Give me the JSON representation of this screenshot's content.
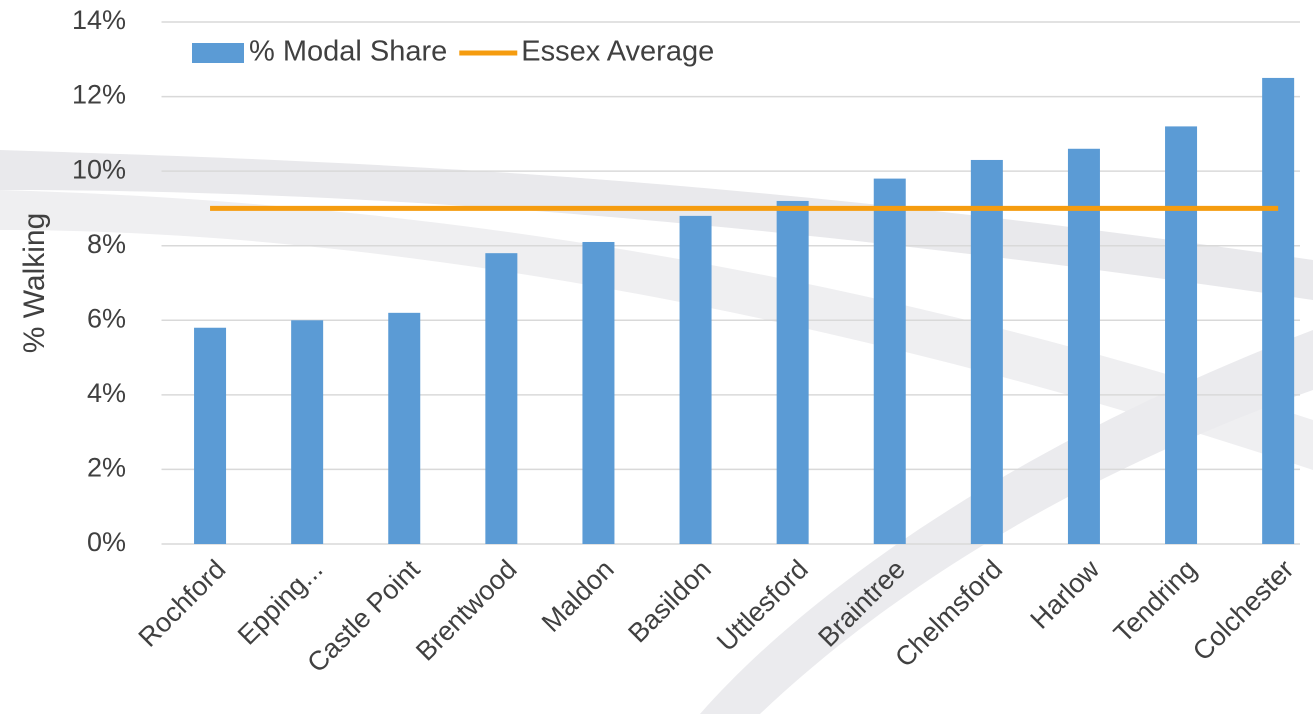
{
  "chart_data": {
    "type": "bar",
    "y_label": "% Walking",
    "categories": [
      "Rochford",
      "Epping...",
      "Castle Point",
      "Brentwood",
      "Maldon",
      "Basildon",
      "Uttlesford",
      "Braintree",
      "Chelmsford",
      "Harlow",
      "Tendring",
      "Colchester"
    ],
    "series": [
      {
        "name": "% Modal Share",
        "type": "bar",
        "color": "#5b9bd5",
        "values": [
          5.8,
          6.0,
          6.2,
          7.8,
          8.1,
          8.8,
          9.2,
          9.8,
          10.3,
          10.6,
          11.2,
          12.5
        ]
      },
      {
        "name": "Essex Average",
        "type": "line",
        "color": "#f59c0f",
        "values": [
          9.0,
          9.0,
          9.0,
          9.0,
          9.0,
          9.0,
          9.0,
          9.0,
          9.0,
          9.0,
          9.0,
          9.0
        ]
      }
    ],
    "ylim": [
      0,
      14
    ],
    "yticks": [
      {
        "value": 0,
        "label": "0%"
      },
      {
        "value": 2,
        "label": "2%"
      },
      {
        "value": 4,
        "label": "4%"
      },
      {
        "value": 6,
        "label": "6%"
      },
      {
        "value": 8,
        "label": "8%"
      },
      {
        "value": 10,
        "label": "10%"
      },
      {
        "value": 12,
        "label": "12%"
      },
      {
        "value": 14,
        "label": "14%"
      }
    ],
    "grid": true,
    "legend": "top-left"
  }
}
